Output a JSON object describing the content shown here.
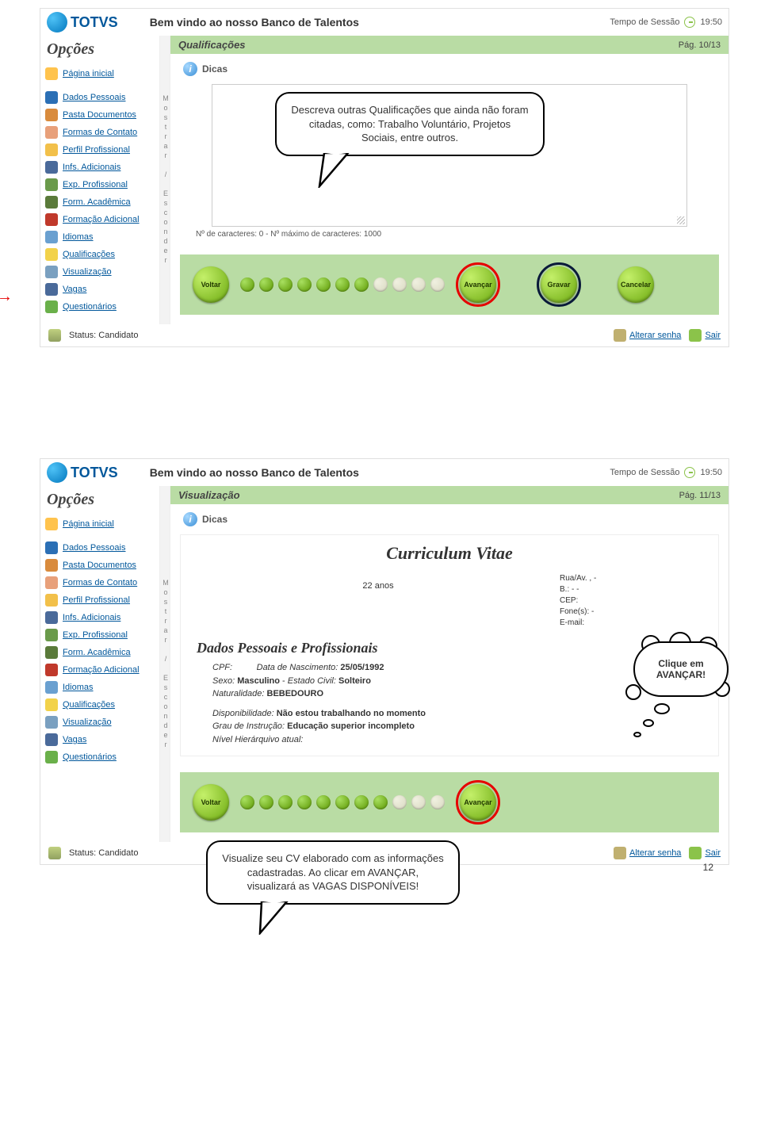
{
  "page_number": "12",
  "brand": "TOTVS",
  "welcome": "Bem vindo ao nosso Banco de Talentos",
  "session_label": "Tempo de Sessão",
  "session_time": "19:50",
  "sidebar_title": "Opções",
  "toggle_label": "Mostrar / Esconder",
  "sidebar": {
    "items": [
      {
        "label": "Página inicial",
        "color": "#ffc34d"
      },
      {
        "label": "Dados Pessoais",
        "color": "#2b6fb5"
      },
      {
        "label": "Pasta Documentos",
        "color": "#d98b3d"
      },
      {
        "label": "Formas de Contato",
        "color": "#e8a07a"
      },
      {
        "label": "Perfil Profissional",
        "color": "#f2c04a"
      },
      {
        "label": "Infs. Adicionais",
        "color": "#4a6a9a"
      },
      {
        "label": "Exp. Profissional",
        "color": "#6a9a4a"
      },
      {
        "label": "Form. Acadêmica",
        "color": "#5a7a3a"
      },
      {
        "label": "Formação Adicional",
        "color": "#c0392b"
      },
      {
        "label": "Idiomas",
        "color": "#6aa0d0"
      },
      {
        "label": "Qualificações",
        "color": "#f2d24a"
      },
      {
        "label": "Visualização",
        "color": "#7aa0c0"
      },
      {
        "label": "Vagas",
        "color": "#4a6a9a"
      },
      {
        "label": "Questionários",
        "color": "#6ab04a"
      }
    ]
  },
  "status_label": "Status: Candidato",
  "footer": {
    "alterar": "Alterar senha",
    "sair": "Sair"
  },
  "dicas_label": "Dicas",
  "buttons": {
    "voltar": "Voltar",
    "avancar": "Avançar",
    "gravar": "Gravar",
    "cancelar": "Cancelar"
  },
  "screen1": {
    "title": "Qualificações",
    "page": "Pág. 10/13",
    "char_count": "Nº de caracteres: 0 - Nº máximo de caracteres: 1000",
    "callout": "Descreva outras Qualificações que ainda não foram citadas, como: Trabalho Voluntário, Projetos Sociais, entre outros.",
    "dots_total": 13,
    "dots_done": 8
  },
  "screen2": {
    "title": "Visualização",
    "page": "Pág. 11/13",
    "cv_title": "Curriculum Vitae",
    "age": "22 anos",
    "contact": {
      "rua": "Rua/Av. , -",
      "b": "B.: - -",
      "cep": "CEP:",
      "fone": "Fone(s): -",
      "email": "E-mail:"
    },
    "section1": "Dados Pessoais e Profissionais",
    "cpf_label": "CPF:",
    "dob_label": "Data de Nascimento:",
    "dob": "25/05/1992",
    "sexo_label": "Sexo:",
    "sexo": "Masculino",
    "ec_label": "Estado Civil:",
    "ec": "Solteiro",
    "nat_label": "Naturalidade:",
    "nat": "BEBEDOURO",
    "disp_label": "Disponibilidade:",
    "disp": "Não estou trabalhando no momento",
    "grau_label": "Grau de Instrução:",
    "grau": "Educação superior incompleto",
    "nivel_label": "Nível Hierárquivo atual:",
    "cloud": "Clique em AVANÇAR!",
    "callout": "Visualize seu CV elaborado com as informações cadastradas. Ao clicar em AVANÇAR, visualizará as VAGAS DISPONÍVEIS!",
    "dots_total": 13,
    "dots_done": 9
  }
}
